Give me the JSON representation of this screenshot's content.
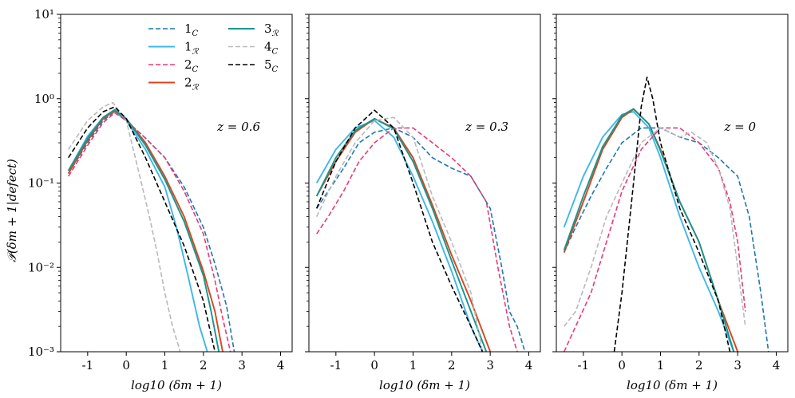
{
  "chart_data": {
    "type": "line",
    "layout": "1x3",
    "yscale": "log",
    "ylim": [
      0.001,
      10
    ],
    "xlim": [
      -1.7,
      4.3
    ],
    "ylabel": "𝒫(δm + 1|defect)",
    "xlabel": "log10 (δm + 1)",
    "x_ticks": [
      "-1",
      "0",
      "1",
      "2",
      "3",
      "4"
    ],
    "y_ticks": [
      "10⁻³",
      "10⁻²",
      "10⁻¹",
      "10⁰",
      "10¹"
    ],
    "legend": [
      {
        "key": "1C",
        "label": "1",
        "sub": "C",
        "color": "#1f77b4",
        "dashed": true
      },
      {
        "key": "1R",
        "label": "1",
        "sub": "ℛ",
        "color": "#3fb7e6",
        "dashed": false
      },
      {
        "key": "2C",
        "label": "2",
        "sub": "C",
        "color": "#e63b7a",
        "dashed": true
      },
      {
        "key": "2R",
        "label": "2",
        "sub": "ℛ",
        "color": "#d6461f",
        "dashed": false
      },
      {
        "key": "3R",
        "label": "3",
        "sub": "ℛ",
        "color": "#17968f",
        "dashed": false
      },
      {
        "key": "4C",
        "label": "4",
        "sub": "C",
        "color": "#b9b9b9",
        "dashed": true
      },
      {
        "key": "5C",
        "label": "5",
        "sub": "C",
        "color": "#000000",
        "dashed": true
      }
    ],
    "panels": [
      {
        "annotation": "z = 0.6",
        "series": [
          {
            "key": "1C",
            "x": [
              -1.5,
              -1.0,
              -0.6,
              -0.3,
              0.0,
              0.5,
              1.0,
              1.5,
              2.0,
              2.3,
              2.6,
              2.8
            ],
            "y": [
              0.13,
              0.3,
              0.55,
              0.7,
              0.55,
              0.34,
              0.2,
              0.09,
              0.03,
              0.011,
              0.0035,
              0.001
            ]
          },
          {
            "key": "1R",
            "x": [
              -1.5,
              -1.0,
              -0.6,
              -0.3,
              0.0,
              0.5,
              1.0,
              1.3,
              1.6,
              1.9,
              2.1
            ],
            "y": [
              0.14,
              0.36,
              0.6,
              0.7,
              0.55,
              0.25,
              0.09,
              0.03,
              0.008,
              0.002,
              0.001
            ]
          },
          {
            "key": "2C",
            "x": [
              -1.5,
              -1.0,
              -0.6,
              -0.3,
              0.0,
              0.5,
              1.0,
              1.5,
              2.0,
              2.3,
              2.5,
              2.7
            ],
            "y": [
              0.12,
              0.28,
              0.52,
              0.68,
              0.55,
              0.34,
              0.2,
              0.08,
              0.025,
              0.007,
              0.0025,
              0.001
            ]
          },
          {
            "key": "2R",
            "x": [
              -1.5,
              -1.0,
              -0.6,
              -0.3,
              0.0,
              0.5,
              1.0,
              1.5,
              2.0,
              2.3,
              2.5
            ],
            "y": [
              0.13,
              0.32,
              0.58,
              0.72,
              0.58,
              0.3,
              0.12,
              0.04,
              0.009,
              0.003,
              0.001
            ]
          },
          {
            "key": "3R",
            "x": [
              -1.5,
              -1.0,
              -0.6,
              -0.3,
              0.0,
              0.5,
              1.0,
              1.5,
              2.0,
              2.2,
              2.4
            ],
            "y": [
              0.14,
              0.34,
              0.6,
              0.74,
              0.58,
              0.28,
              0.11,
              0.035,
              0.008,
              0.003,
              0.001
            ]
          },
          {
            "key": "4C",
            "x": [
              -1.5,
              -1.0,
              -0.6,
              -0.35,
              0.0,
              0.3,
              0.6,
              0.8,
              1.0,
              1.2,
              1.4
            ],
            "y": [
              0.25,
              0.55,
              0.8,
              0.9,
              0.55,
              0.15,
              0.04,
              0.015,
              0.005,
              0.002,
              0.001
            ]
          },
          {
            "key": "5C",
            "x": [
              -1.5,
              -1.0,
              -0.6,
              -0.3,
              0.0,
              0.5,
              1.0,
              1.5,
              2.0,
              2.3
            ],
            "y": [
              0.2,
              0.45,
              0.7,
              0.8,
              0.58,
              0.2,
              0.06,
              0.018,
              0.004,
              0.001
            ]
          }
        ]
      },
      {
        "annotation": "z = 0.3",
        "series": [
          {
            "key": "1C",
            "x": [
              -1.5,
              -1.2,
              -0.8,
              -0.4,
              0.0,
              0.5,
              1.0,
              1.5,
              2.0,
              2.5,
              3.0,
              3.3,
              3.5,
              3.7,
              3.9
            ],
            "y": [
              0.05,
              0.08,
              0.15,
              0.3,
              0.4,
              0.45,
              0.35,
              0.2,
              0.15,
              0.12,
              0.05,
              0.01,
              0.003,
              0.002,
              0.001
            ]
          },
          {
            "key": "1R",
            "x": [
              -1.5,
              -1.0,
              -0.5,
              0.0,
              0.5,
              1.0,
              1.5,
              2.0,
              2.5,
              2.8
            ],
            "y": [
              0.1,
              0.25,
              0.45,
              0.55,
              0.35,
              0.12,
              0.035,
              0.009,
              0.002,
              0.001
            ]
          },
          {
            "key": "2C",
            "x": [
              -1.5,
              -1.2,
              -0.8,
              -0.4,
              0.0,
              0.5,
              1.0,
              1.5,
              2.0,
              2.5,
              2.9,
              3.2,
              3.5,
              3.7
            ],
            "y": [
              0.025,
              0.04,
              0.08,
              0.18,
              0.3,
              0.45,
              0.45,
              0.3,
              0.2,
              0.12,
              0.06,
              0.01,
              0.002,
              0.001
            ]
          },
          {
            "key": "2R",
            "x": [
              -1.5,
              -1.0,
              -0.5,
              0.0,
              0.5,
              1.0,
              1.5,
              2.0,
              2.5,
              3.0
            ],
            "y": [
              0.07,
              0.18,
              0.4,
              0.58,
              0.45,
              0.2,
              0.055,
              0.014,
              0.004,
              0.001
            ]
          },
          {
            "key": "3R",
            "x": [
              -1.5,
              -1.0,
              -0.5,
              0.0,
              0.5,
              1.0,
              1.5,
              2.0,
              2.5,
              2.9
            ],
            "y": [
              0.07,
              0.2,
              0.42,
              0.58,
              0.44,
              0.18,
              0.05,
              0.012,
              0.003,
              0.001
            ]
          },
          {
            "key": "4C",
            "x": [
              -1.5,
              -1.0,
              -0.5,
              0.0,
              0.5,
              1.0,
              1.5,
              2.0,
              2.5,
              2.8
            ],
            "y": [
              0.04,
              0.12,
              0.3,
              0.55,
              0.6,
              0.35,
              0.07,
              0.02,
              0.005,
              0.001
            ]
          },
          {
            "key": "5C",
            "x": [
              -1.5,
              -1.0,
              -0.5,
              0.0,
              0.5,
              1.0,
              1.5,
              2.0,
              2.5,
              2.8
            ],
            "y": [
              0.05,
              0.18,
              0.45,
              0.73,
              0.45,
              0.1,
              0.02,
              0.006,
              0.002,
              0.001
            ]
          }
        ]
      },
      {
        "annotation": "z = 0",
        "series": [
          {
            "key": "1C",
            "x": [
              -1.5,
              -1.2,
              -0.8,
              -0.4,
              0.0,
              0.5,
              1.0,
              1.5,
              2.0,
              2.5,
              3.0,
              3.3,
              3.6,
              3.8
            ],
            "y": [
              0.015,
              0.03,
              0.07,
              0.15,
              0.3,
              0.45,
              0.45,
              0.35,
              0.3,
              0.2,
              0.12,
              0.04,
              0.005,
              0.001
            ]
          },
          {
            "key": "1R",
            "x": [
              -1.5,
              -1.0,
              -0.5,
              0.0,
              0.3,
              0.7,
              1.0,
              1.5,
              2.0,
              2.5,
              2.9
            ],
            "y": [
              0.03,
              0.12,
              0.35,
              0.65,
              0.7,
              0.45,
              0.2,
              0.04,
              0.01,
              0.003,
              0.001
            ]
          },
          {
            "key": "2C",
            "x": [
              -1.5,
              -1.2,
              -0.8,
              -0.4,
              0.0,
              0.5,
              1.0,
              1.5,
              2.0,
              2.5,
              2.8,
              3.0,
              3.2
            ],
            "y": [
              0.001,
              0.002,
              0.005,
              0.02,
              0.08,
              0.25,
              0.45,
              0.45,
              0.3,
              0.15,
              0.06,
              0.02,
              0.003
            ]
          },
          {
            "key": "2R",
            "x": [
              -1.5,
              -1.0,
              -0.5,
              0.0,
              0.3,
              0.7,
              1.0,
              1.5,
              2.0,
              2.5,
              3.0
            ],
            "y": [
              0.015,
              0.06,
              0.25,
              0.6,
              0.75,
              0.5,
              0.25,
              0.06,
              0.02,
              0.004,
              0.001
            ]
          },
          {
            "key": "3R",
            "x": [
              -1.5,
              -1.0,
              -0.5,
              0.0,
              0.3,
              0.7,
              1.0,
              1.5,
              2.0,
              2.5,
              2.9
            ],
            "y": [
              0.016,
              0.07,
              0.27,
              0.63,
              0.76,
              0.5,
              0.24,
              0.06,
              0.02,
              0.004,
              0.001
            ]
          },
          {
            "key": "4C",
            "x": [
              -1.5,
              -1.2,
              -0.8,
              -0.4,
              0.0,
              0.5,
              1.0,
              1.5,
              1.8,
              2.2,
              2.5,
              2.8,
              3.0,
              3.2
            ],
            "y": [
              0.002,
              0.003,
              0.01,
              0.04,
              0.1,
              0.3,
              0.45,
              0.35,
              0.4,
              0.3,
              0.15,
              0.05,
              0.01,
              0.002
            ]
          },
          {
            "key": "5C",
            "x": [
              -0.2,
              0.0,
              0.3,
              0.5,
              0.65,
              0.8,
              1.0,
              1.5,
              2.0,
              2.5,
              2.8
            ],
            "y": [
              0.001,
              0.005,
              0.1,
              0.8,
              1.8,
              1.0,
              0.3,
              0.05,
              0.015,
              0.004,
              0.001
            ]
          }
        ]
      }
    ]
  }
}
